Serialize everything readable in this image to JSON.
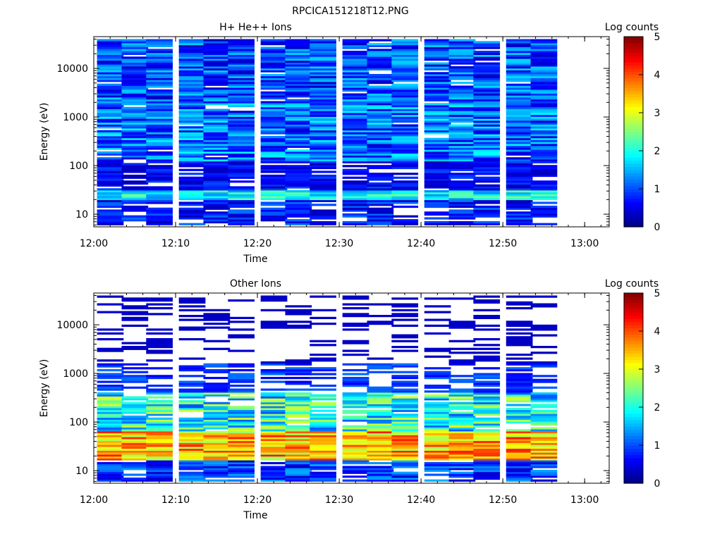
{
  "figure_title": "RPCICA151218T12.PNG",
  "chart_data": [
    {
      "type": "heatmap",
      "title": "H+ He++ Ions",
      "xlabel": "Time",
      "ylabel": "Energy (eV)",
      "x_ticks": [
        "12:00",
        "12:10",
        "12:20",
        "12:30",
        "12:40",
        "12:50",
        "13:00"
      ],
      "xlim": [
        "12:00",
        "13:03"
      ],
      "y_scale": "log",
      "ylim": [
        5.5,
        45000
      ],
      "y_ticks": [
        10,
        100,
        1000,
        10000
      ],
      "y_tick_labels": [
        "10",
        "100",
        "1000",
        "10000"
      ],
      "colorbar": {
        "label": "Log counts",
        "range": [
          0,
          5
        ],
        "ticks": [
          "0",
          "1",
          "2",
          "3",
          "4",
          "5"
        ]
      },
      "time_bins": [
        "12:02",
        "12:05",
        "12:08",
        "12:12",
        "12:15",
        "12:18",
        "12:22",
        "12:25",
        "12:28",
        "12:32",
        "12:35",
        "12:38",
        "12:42",
        "12:45",
        "12:48",
        "12:52",
        "12:55"
      ],
      "energy_range_eV": [
        6,
        40000
      ],
      "energy_channels": 96,
      "typical_log_counts": {
        "below_30eV": 2.0,
        "30_to_100eV": 0.6,
        "100_to_2000eV": 1.0,
        "above_2000eV": 0.9
      },
      "grid": false
    },
    {
      "type": "heatmap",
      "title": "Other Ions",
      "xlabel": "Time",
      "ylabel": "Energy (eV)",
      "x_ticks": [
        "12:00",
        "12:10",
        "12:20",
        "12:30",
        "12:40",
        "12:50",
        "13:00"
      ],
      "xlim": [
        "12:00",
        "13:03"
      ],
      "y_scale": "log",
      "ylim": [
        5.5,
        45000
      ],
      "y_ticks": [
        10,
        100,
        1000,
        10000
      ],
      "y_tick_labels": [
        "10",
        "100",
        "1000",
        "10000"
      ],
      "colorbar": {
        "label": "Log counts",
        "range": [
          0,
          5
        ],
        "ticks": [
          "0",
          "1",
          "2",
          "3",
          "4",
          "5"
        ]
      },
      "time_bins": [
        "12:02",
        "12:05",
        "12:08",
        "12:12",
        "12:15",
        "12:18",
        "12:22",
        "12:25",
        "12:28",
        "12:32",
        "12:35",
        "12:38",
        "12:42",
        "12:45",
        "12:48",
        "12:52",
        "12:55"
      ],
      "energy_range_eV": [
        6,
        40000
      ],
      "energy_channels": 96,
      "typical_log_counts": {
        "below_15eV": 0.8,
        "15_to_60eV": 3.6,
        "60_to_500eV": 2.0,
        "above_500eV": 0.2
      },
      "grid": false
    }
  ]
}
